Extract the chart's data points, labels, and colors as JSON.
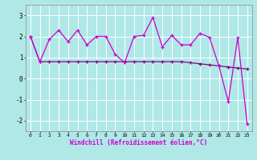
{
  "x": [
    0,
    1,
    2,
    3,
    4,
    5,
    6,
    7,
    8,
    9,
    10,
    11,
    12,
    13,
    14,
    15,
    16,
    17,
    18,
    19,
    20,
    21,
    22,
    23
  ],
  "line1": [
    2.0,
    0.8,
    1.85,
    2.3,
    1.75,
    2.3,
    1.6,
    2.0,
    2.0,
    1.15,
    0.75,
    2.0,
    2.05,
    2.9,
    1.5,
    2.05,
    1.6,
    1.6,
    2.15,
    1.95,
    0.6,
    -1.1,
    1.95,
    -2.15
  ],
  "line2": [
    2.0,
    0.8,
    0.8,
    0.8,
    0.8,
    0.8,
    0.8,
    0.8,
    0.8,
    0.8,
    0.8,
    0.8,
    0.8,
    0.8,
    0.8,
    0.8,
    0.8,
    0.75,
    0.7,
    0.65,
    0.6,
    0.55,
    0.5,
    0.45
  ],
  "background_color": "#b0e8e8",
  "grid_color": "#ffffff",
  "line1_color": "#cc00cc",
  "line2_color": "#800080",
  "xlabel": "Windchill (Refroidissement éolien,°C)",
  "xlabel_color": "#cc00cc",
  "ylim": [
    -2.5,
    3.5
  ],
  "xlim": [
    -0.5,
    23.5
  ],
  "yticks": [
    -2,
    -1,
    0,
    1,
    2,
    3
  ],
  "xticks": [
    0,
    1,
    2,
    3,
    4,
    5,
    6,
    7,
    8,
    9,
    10,
    11,
    12,
    13,
    14,
    15,
    16,
    17,
    18,
    19,
    20,
    21,
    22,
    23
  ]
}
